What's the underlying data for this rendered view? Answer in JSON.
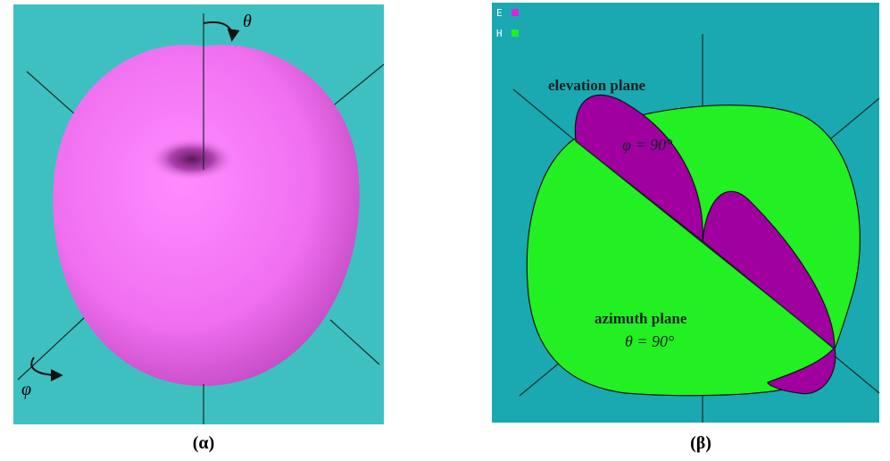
{
  "panels": [
    {
      "caption": "(α)",
      "theta_label": "θ",
      "phi_label": "φ"
    },
    {
      "caption": "(β)",
      "legend": [
        "E",
        "H"
      ],
      "annotations": {
        "elevation": "elevation plane",
        "elevation_angle": "φ = 90°",
        "azimuth": "azimuth plane",
        "azimuth_angle": "θ = 90°"
      }
    }
  ]
}
